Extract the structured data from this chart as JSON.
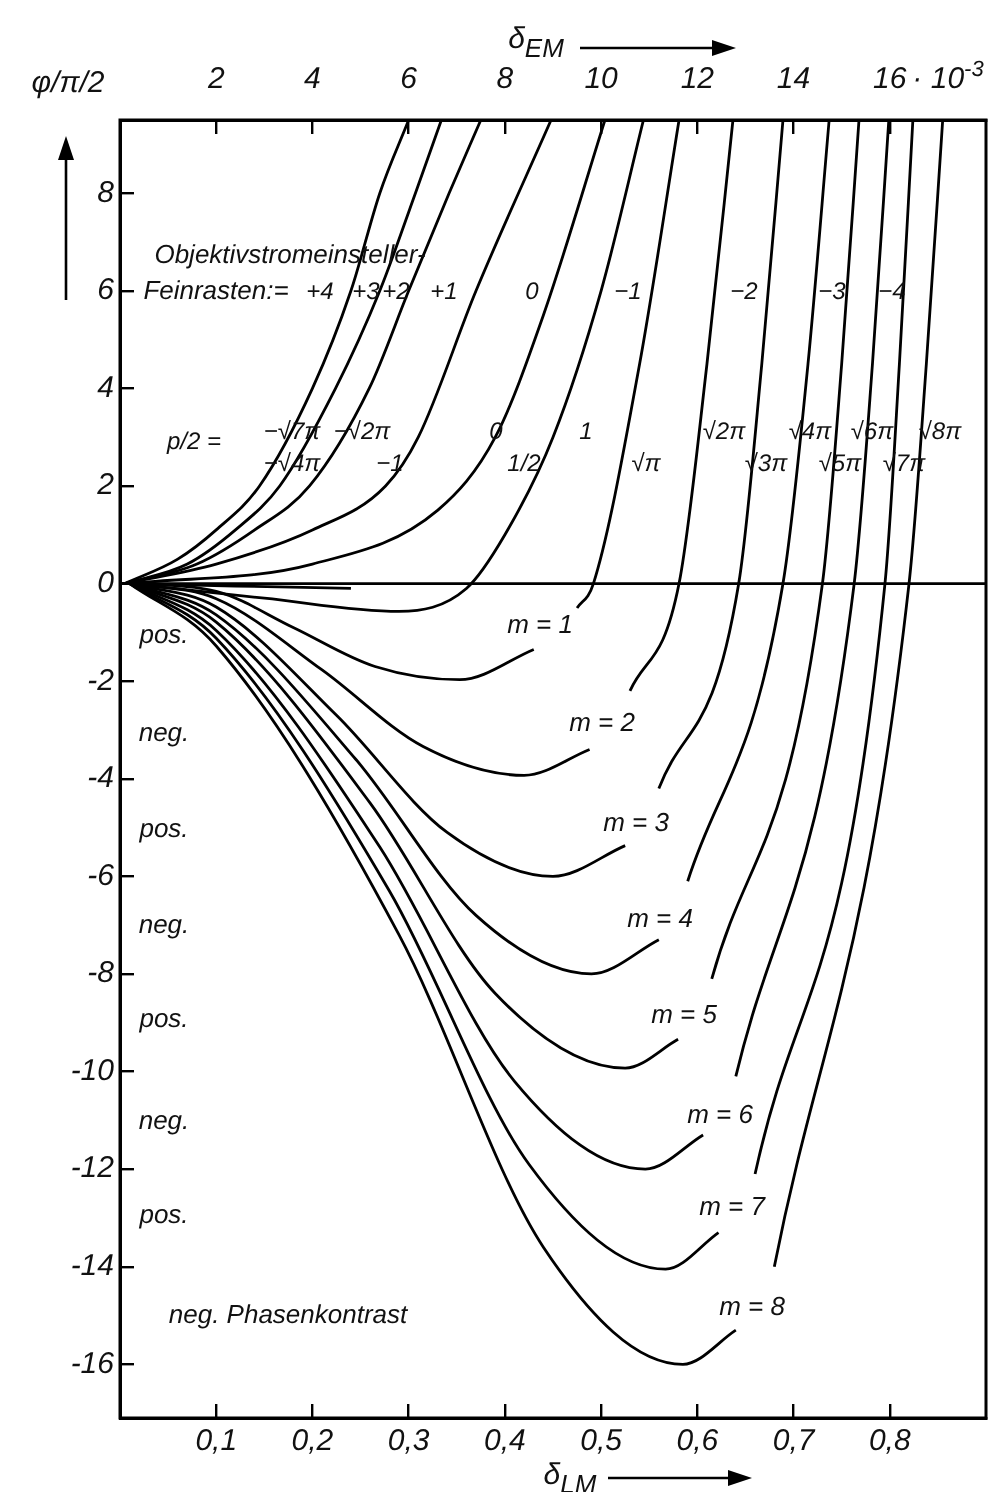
{
  "chart_data": {
    "type": "line",
    "xlabel": "δ$_{LM}$",
    "x2label": "δ$_{EM}$",
    "ylabel": "φ/π/2",
    "xlim": [
      0,
      0.9
    ],
    "xticks": [
      {
        "value": 0.1,
        "label": "0,1"
      },
      {
        "value": 0.2,
        "label": "0,2"
      },
      {
        "value": 0.3,
        "label": "0,3"
      },
      {
        "value": 0.4,
        "label": "0,4"
      },
      {
        "value": 0.5,
        "label": "0,5"
      },
      {
        "value": 0.6,
        "label": "0,6"
      },
      {
        "value": 0.7,
        "label": "0,7"
      },
      {
        "value": 0.8,
        "label": "0,8"
      }
    ],
    "x2lim": [
      0,
      18
    ],
    "x2ticks": [
      2,
      4,
      6,
      8,
      10,
      12,
      14,
      16
    ],
    "ylim": [
      -17.1,
      9.5
    ],
    "yticks": [
      8,
      6,
      4,
      2,
      0,
      -2,
      -4,
      -6,
      -8,
      -10,
      -12,
      -14,
      -16
    ],
    "grid": false,
    "legend": false,
    "marker": "none",
    "line_style": "solid",
    "ref_lines": [
      {
        "axis": "y",
        "value": 0,
        "color": "#000000"
      }
    ],
    "series": [
      {
        "color": "#000000",
        "x": [
          0.005,
          0.06,
          0.1,
          0.145,
          0.2,
          0.24,
          0.27,
          0.3
        ],
        "values": [
          0,
          0.5,
          1.1,
          2,
          4,
          6,
          8,
          9.5
        ]
      },
      {
        "color": "#000000",
        "x": [
          0.005,
          0.07,
          0.12,
          0.166,
          0.224,
          0.27,
          0.307,
          0.334
        ],
        "values": [
          0,
          0.4,
          1.1,
          2,
          4,
          6,
          8,
          9.5
        ]
      },
      {
        "color": "#000000",
        "x": [
          0.005,
          0.08,
          0.14,
          0.197,
          0.259,
          0.3,
          0.342,
          0.375
        ],
        "values": [
          0,
          0.4,
          1.1,
          2,
          4,
          6,
          8,
          9.5
        ]
      },
      {
        "color": "#000000",
        "x": [
          0.005,
          0.1,
          0.2,
          0.276,
          0.31,
          0.37,
          0.448
        ],
        "values": [
          0,
          0.4,
          1.1,
          2,
          3,
          6,
          9.5
        ]
      },
      {
        "color": "#000000",
        "x": [
          0.01,
          0.2,
          0.33,
          0.39,
          0.44,
          0.504
        ],
        "values": [
          0,
          0.4,
          1.5,
          3,
          5.5,
          9.5
        ]
      },
      {
        "color": "#000000",
        "x": [
          0.01,
          0.15,
          0.29,
          0.36,
          0.4,
          0.45,
          0.5,
          0.544
        ],
        "values": [
          0,
          -0.3,
          -0.57,
          -0.1,
          1,
          3,
          6,
          9.5
        ]
      },
      {
        "color": "#000000",
        "x": [
          0.01,
          0.12,
          0.24
        ],
        "values": [
          0,
          -0.05,
          -0.1
        ]
      },
      {
        "color": "#000000",
        "x": [
          0.01,
          0.1,
          0.18,
          0.265,
          0.353,
          0.43,
          0.45,
          0.475,
          0.492,
          0.54,
          0.581
        ],
        "values": [
          0,
          -0.16,
          -0.9,
          -1.7,
          -1.97,
          -1.35,
          null,
          -0.5,
          0,
          4.5,
          9.5
        ]
      },
      {
        "color": "#000000",
        "x": [
          0.01,
          0.1,
          0.21,
          0.315,
          0.42,
          0.488,
          0.5,
          0.53,
          0.581,
          0.61,
          0.637
        ],
        "values": [
          0,
          -0.31,
          -1.77,
          -3.34,
          -3.93,
          -3.4,
          null,
          -2.2,
          0,
          4.5,
          9.5
        ]
      },
      {
        "color": "#000000",
        "x": [
          0.01,
          0.1,
          0.225,
          0.34,
          0.45,
          0.525,
          0.54,
          0.56,
          0.643,
          0.667,
          0.689
        ],
        "values": [
          0,
          -0.48,
          -2.7,
          -5.1,
          -6,
          -5.37,
          null,
          -4.2,
          0,
          4.5,
          9.5
        ]
      },
      {
        "color": "#000000",
        "x": [
          0.01,
          0.1,
          0.245,
          0.37,
          0.49,
          0.56,
          0.575,
          0.59,
          0.689,
          0.715,
          0.737
        ],
        "values": [
          0,
          -0.64,
          -3.6,
          -6.8,
          -8,
          -7.3,
          null,
          -6.1,
          0,
          4.5,
          9.5
        ]
      },
      {
        "color": "#000000",
        "x": [
          0.01,
          0.1,
          0.26,
          0.39,
          0.525,
          0.58,
          0.6,
          0.615,
          0.73,
          0.75,
          0.768
        ],
        "values": [
          0,
          -0.79,
          -4.5,
          -8.4,
          -9.93,
          -9.34,
          null,
          -8.1,
          0,
          4.5,
          9.5
        ]
      },
      {
        "color": "#000000",
        "x": [
          0.01,
          0.1,
          0.27,
          0.41,
          0.546,
          0.606,
          0.625,
          0.64,
          0.763,
          0.782,
          0.799
        ],
        "values": [
          0,
          -0.96,
          -5.4,
          -10.2,
          -12,
          -11.3,
          null,
          -10.1,
          0,
          4.5,
          9.5
        ]
      },
      {
        "color": "#000000",
        "x": [
          0.01,
          0.1,
          0.28,
          0.425,
          0.567,
          0.622,
          0.64,
          0.66,
          0.795,
          0.81,
          0.824
        ],
        "values": [
          0,
          -1.12,
          -6.3,
          -11.9,
          -14.05,
          -13.3,
          null,
          -12.1,
          0,
          4.5,
          9.5
        ]
      },
      {
        "color": "#000000",
        "x": [
          0.01,
          0.1,
          0.29,
          0.44,
          0.585,
          0.64,
          0.66,
          0.68,
          0.82,
          0.838,
          0.855
        ],
        "values": [
          0,
          -1.28,
          -7.2,
          -13.6,
          -16,
          -15.3,
          null,
          -14,
          0,
          4.5,
          9.5
        ]
      }
    ],
    "annotations": [
      "Objektivstromeinsteller-",
      "Feinrasten:=",
      "+4",
      "+3",
      "+2",
      "+1",
      "0",
      "−1",
      "−2",
      "−3",
      "−4",
      "p/2 =",
      "−√7π",
      "−√2π",
      "−√4π",
      "−1",
      "0",
      "1/2",
      "1",
      "√π",
      "√2π",
      "√3π",
      "√4π",
      "√5π",
      "√6π",
      "√7π",
      "√8π",
      "m = 1",
      "m = 2",
      "m = 3",
      "m = 4",
      "m = 5",
      "m = 6",
      "m = 7",
      "m = 8",
      "pos.",
      "neg.",
      "pos.",
      "neg.",
      "pos.",
      "neg.",
      "pos.",
      "neg. Phasenkontrast",
      "· 10$^{-3}$"
    ]
  }
}
